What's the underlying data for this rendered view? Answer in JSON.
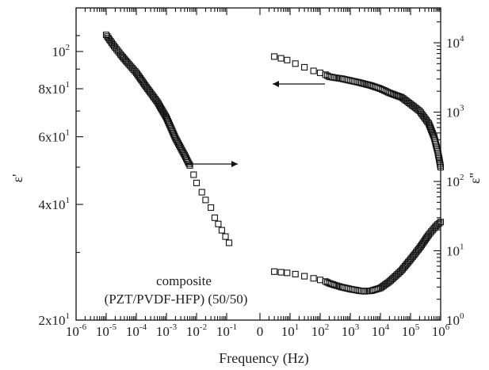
{
  "chart_data": {
    "type": "scatter",
    "title": "",
    "xlabel": "Frequency (Hz)",
    "ylabel_left": "ε'",
    "ylabel_right": "ε''",
    "x_scale": "log",
    "x_axis_note": "x axis is split: left branch spans 10^-6 to 10^0 for ε'' data; right branch ('0' to 10^6) for ε' and ε'' data",
    "x_ticks_left": [
      {
        "base": "10",
        "exp": "-6",
        "value": 1e-06
      },
      {
        "base": "10",
        "exp": "-5",
        "value": 1e-05
      },
      {
        "base": "10",
        "exp": "-4",
        "value": 0.0001
      },
      {
        "base": "10",
        "exp": "-3",
        "value": 0.001
      },
      {
        "base": "10",
        "exp": "-2",
        "value": 0.01
      },
      {
        "base": "10",
        "exp": "-1",
        "value": 0.1
      }
    ],
    "x_ticks_right": [
      {
        "base": "0",
        "exp": "",
        "value": 1
      },
      {
        "base": "10",
        "exp": "1",
        "value": 10
      },
      {
        "base": "10",
        "exp": "2",
        "value": 100
      },
      {
        "base": "10",
        "exp": "3",
        "value": 1000
      },
      {
        "base": "10",
        "exp": "4",
        "value": 10000
      },
      {
        "base": "10",
        "exp": "5",
        "value": 100000
      },
      {
        "base": "10",
        "exp": "6",
        "value": 1000000
      }
    ],
    "y_left_scale": "log",
    "y_left_range": [
      20,
      118
    ],
    "y_left_ticks": [
      {
        "base": "2x10",
        "exp": "1",
        "value": 20
      },
      {
        "base": "4x10",
        "exp": "1",
        "value": 40
      },
      {
        "base": "6x10",
        "exp": "1",
        "value": 60
      },
      {
        "base": "8x10",
        "exp": "1",
        "value": 80
      },
      {
        "base": "10",
        "exp": "2",
        "value": 100
      }
    ],
    "y_right_scale": "log",
    "y_right_range": [
      1,
      25000
    ],
    "y_right_ticks": [
      {
        "base": "10",
        "exp": "0",
        "value": 1
      },
      {
        "base": "10",
        "exp": "1",
        "value": 10
      },
      {
        "base": "10",
        "exp": "2",
        "value": 100
      },
      {
        "base": "10",
        "exp": "3",
        "value": 1000
      },
      {
        "base": "10",
        "exp": "4",
        "value": 10000
      }
    ],
    "annotation": [
      "composite",
      "(PZT/PVDF-HFP) (50/50)"
    ],
    "series": [
      {
        "axis": "right",
        "branch": "left",
        "x": [
          1e-05,
          1.4e-05,
          2e-05,
          3e-05,
          5e-05,
          0.0001,
          0.0002,
          0.0005,
          0.001,
          0.002,
          0.004,
          0.006,
          0.008,
          0.01,
          0.015,
          0.02,
          0.03,
          0.04,
          0.12
        ],
        "y": [
          13000,
          10500,
          8500,
          6800,
          5200,
          3700,
          2400,
          1400,
          830,
          420,
          240,
          170,
          125,
          95,
          70,
          54,
          42,
          30,
          13
        ]
      },
      {
        "axis": "left",
        "branch": "right",
        "x": [
          3,
          5,
          8,
          15,
          30,
          60,
          100,
          150,
          200,
          300,
          500,
          1000,
          2000,
          5000,
          10000,
          20000,
          50000,
          100000,
          200000,
          400000,
          600000,
          800000,
          1000000
        ],
        "y": [
          97,
          96,
          95,
          93,
          91,
          89,
          88,
          87,
          86,
          85.5,
          85,
          84,
          83,
          81.5,
          80,
          78,
          76,
          73,
          70,
          65,
          60,
          55,
          50
        ]
      },
      {
        "axis": "right",
        "branch": "right",
        "x": [
          3,
          5,
          8,
          15,
          30,
          60,
          100,
          150,
          200,
          300,
          500,
          1000,
          2000,
          3000,
          5000,
          10000,
          20000,
          50000,
          100000,
          200000,
          400000,
          600000,
          800000,
          1000000
        ],
        "y": [
          5.0,
          4.9,
          4.8,
          4.6,
          4.3,
          4.0,
          3.8,
          3.6,
          3.4,
          3.2,
          3.0,
          2.8,
          2.65,
          2.6,
          2.65,
          2.9,
          3.6,
          5.2,
          7.5,
          11,
          17,
          21,
          24,
          26
        ]
      }
    ]
  }
}
